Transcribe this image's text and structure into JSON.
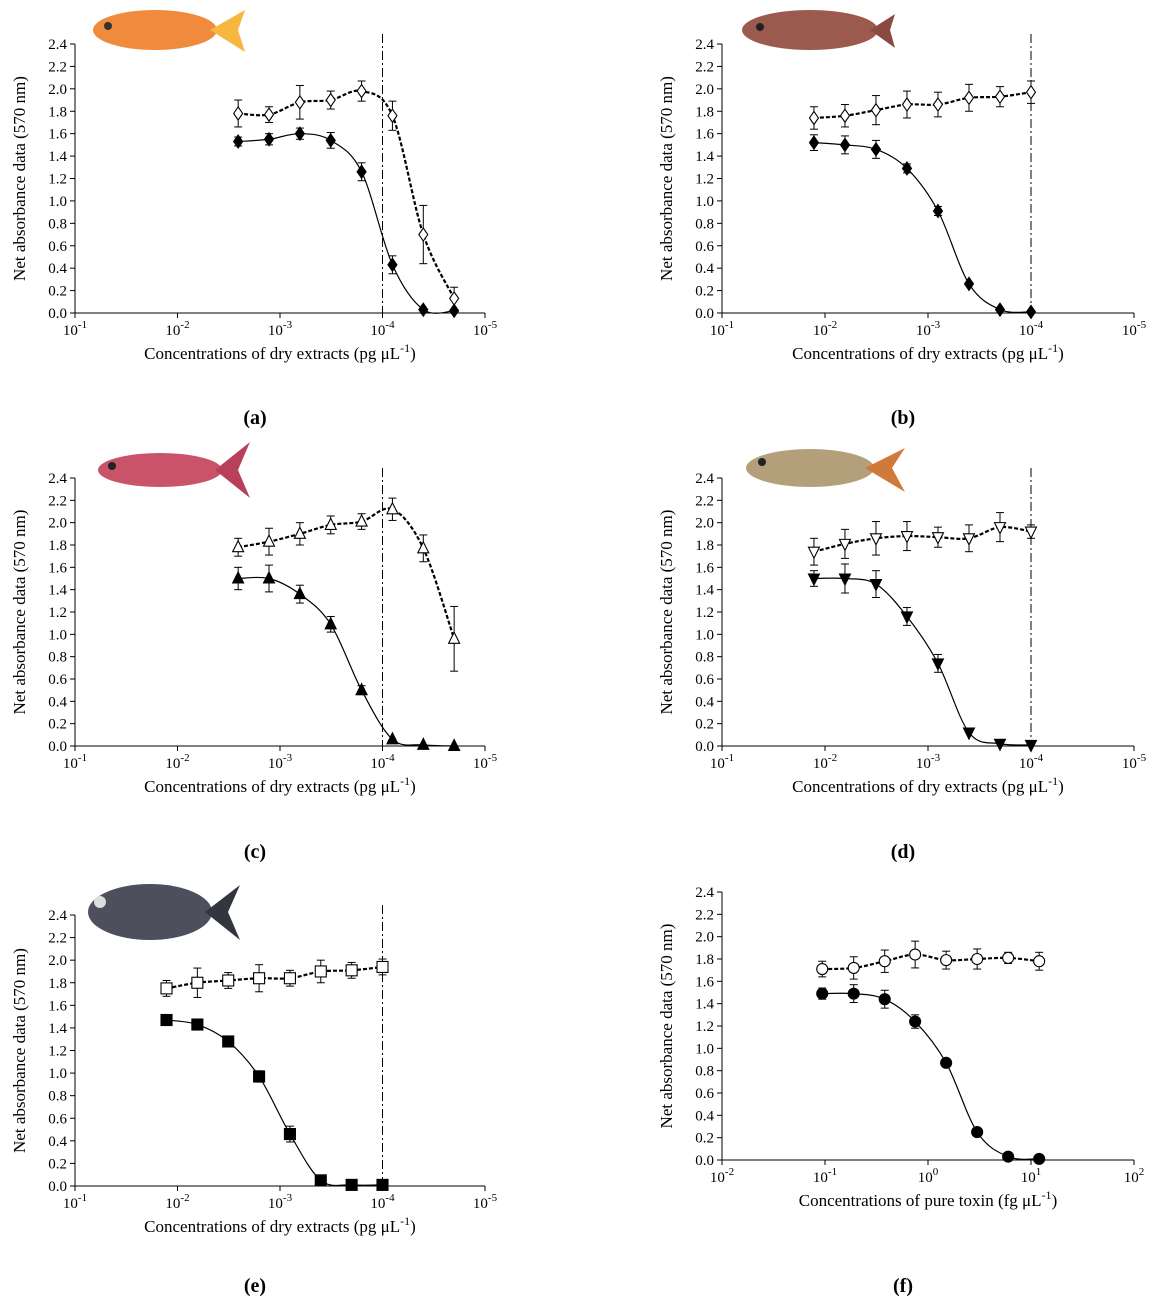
{
  "chart_data": [
    {
      "type": "scatter",
      "panel_label": "(a)",
      "ylabel": "Net absorbance data (570 nm)",
      "xlabel": {
        "text": "Concentrations of dry extracts (pg μL",
        "sup": "-1",
        "end": ")"
      },
      "xscale": "log",
      "xlim": [
        0.1,
        1e-05
      ],
      "xticks": [
        {
          "value": 0.1,
          "label": "10",
          "exponent": "-1"
        },
        {
          "value": 0.01,
          "label": "10",
          "exponent": "-2"
        },
        {
          "value": 0.001,
          "label": "10",
          "exponent": "-3"
        },
        {
          "value": 0.0001,
          "label": "10",
          "exponent": "-4"
        },
        {
          "value": 1e-05,
          "label": "10",
          "exponent": "-5"
        }
      ],
      "ylim": [
        0,
        2.4
      ],
      "yticks": [
        {
          "value": 0,
          "label": "0.0"
        },
        0.2,
        0.4,
        0.6,
        0.8,
        {
          "value": 1,
          "label": "1.0"
        },
        1.2,
        1.4,
        1.6,
        1.8,
        {
          "value": 2,
          "label": "2.0"
        },
        2.2,
        2.4
      ],
      "vline_x": 0.0001,
      "x": [
        0.00256,
        0.00128,
        0.00064,
        0.00032,
        0.00016,
        8e-05,
        4e-05,
        2e-05
      ],
      "series": [
        {
          "marker": "diamond",
          "fill": "#000000",
          "color": "#000000",
          "line": "solid",
          "values": [
            1.53,
            1.55,
            1.6,
            1.54,
            1.26,
            0.43,
            0.03,
            0.02
          ],
          "errors": [
            0.04,
            0.05,
            0.05,
            0.07,
            0.08,
            0.08,
            0,
            0
          ]
        },
        {
          "marker": "diamond",
          "fill": "#ffffff",
          "color": "#000000",
          "line": "dashed",
          "values": [
            1.78,
            1.77,
            1.88,
            1.9,
            1.98,
            1.76,
            0.7,
            0.13
          ],
          "errors": [
            0.12,
            0.07,
            0.15,
            0.08,
            0.09,
            0.13,
            0.26,
            0.1
          ]
        }
      ]
    },
    {
      "type": "scatter",
      "panel_label": "(b)",
      "ylabel": "Net absorbance data (570 nm)",
      "xlabel": {
        "text": "Concentrations of dry extracts (pg μL",
        "sup": "-1",
        "end": ")"
      },
      "xscale": "log",
      "xlim": [
        0.1,
        1e-05
      ],
      "xticks": [
        {
          "value": 0.1,
          "label": "10",
          "exponent": "-1"
        },
        {
          "value": 0.01,
          "label": "10",
          "exponent": "-2"
        },
        {
          "value": 0.001,
          "label": "10",
          "exponent": "-3"
        },
        {
          "value": 0.0001,
          "label": "10",
          "exponent": "-4"
        },
        {
          "value": 1e-05,
          "label": "10",
          "exponent": "-5"
        }
      ],
      "ylim": [
        0,
        2.4
      ],
      "yticks": [
        {
          "value": 0,
          "label": "0.0"
        },
        0.2,
        0.4,
        0.6,
        0.8,
        {
          "value": 1,
          "label": "1.0"
        },
        1.2,
        1.4,
        1.6,
        1.8,
        {
          "value": 2,
          "label": "2.0"
        },
        2.2,
        2.4
      ],
      "vline_x": 0.0001,
      "x": [
        0.0128,
        0.0064,
        0.0032,
        0.0016,
        0.0008,
        0.0004,
        0.0002,
        0.0001
      ],
      "series": [
        {
          "marker": "diamond",
          "fill": "#000000",
          "color": "#000000",
          "line": "solid",
          "values": [
            1.52,
            1.5,
            1.46,
            1.29,
            0.91,
            0.26,
            0.03,
            0.01
          ],
          "errors": [
            0.07,
            0.08,
            0.08,
            0.04,
            0.04,
            0,
            0,
            0
          ]
        },
        {
          "marker": "diamond",
          "fill": "#ffffff",
          "color": "#000000",
          "line": "dashed",
          "values": [
            1.74,
            1.76,
            1.81,
            1.86,
            1.86,
            1.92,
            1.93,
            1.97
          ],
          "errors": [
            0.1,
            0.1,
            0.13,
            0.12,
            0.11,
            0.12,
            0.09,
            0.1
          ]
        }
      ]
    },
    {
      "type": "scatter",
      "panel_label": "(c)",
      "ylabel": "Net absorbance data (570 nm)",
      "xlabel": {
        "text": "Concentrations of dry extracts (pg μL",
        "sup": "-1",
        "end": ")"
      },
      "xscale": "log",
      "xlim": [
        0.1,
        1e-05
      ],
      "xticks": [
        {
          "value": 0.1,
          "label": "10",
          "exponent": "-1"
        },
        {
          "value": 0.01,
          "label": "10",
          "exponent": "-2"
        },
        {
          "value": 0.001,
          "label": "10",
          "exponent": "-3"
        },
        {
          "value": 0.0001,
          "label": "10",
          "exponent": "-4"
        },
        {
          "value": 1e-05,
          "label": "10",
          "exponent": "-5"
        }
      ],
      "ylim": [
        0,
        2.4
      ],
      "yticks": [
        {
          "value": 0,
          "label": "0.0"
        },
        0.2,
        0.4,
        0.6,
        0.8,
        {
          "value": 1,
          "label": "1.0"
        },
        1.2,
        1.4,
        1.6,
        1.8,
        {
          "value": 2,
          "label": "2.0"
        },
        2.2,
        2.4
      ],
      "vline_x": 0.0001,
      "x": [
        0.00256,
        0.00128,
        0.00064,
        0.00032,
        0.00016,
        8e-05,
        4e-05,
        2e-05
      ],
      "series": [
        {
          "marker": "triangle-up",
          "fill": "#000000",
          "color": "#000000",
          "line": "solid",
          "values": [
            1.5,
            1.5,
            1.36,
            1.09,
            0.5,
            0.06,
            0.01,
            0.0
          ],
          "errors": [
            0.1,
            0.12,
            0.08,
            0.07,
            0.04,
            0,
            0,
            0
          ]
        },
        {
          "marker": "triangle-up",
          "fill": "#ffffff",
          "color": "#000000",
          "line": "dashed",
          "values": [
            1.78,
            1.83,
            1.9,
            1.98,
            2.01,
            2.12,
            1.77,
            0.96
          ],
          "errors": [
            0.08,
            0.12,
            0.1,
            0.08,
            0.07,
            0.1,
            0.12,
            0.29
          ]
        }
      ]
    },
    {
      "type": "scatter",
      "panel_label": "(d)",
      "ylabel": "Net absorbance data (570 nm)",
      "xlabel": {
        "text": "Concentrations of dry extracts (pg μL",
        "sup": "-1",
        "end": ")"
      },
      "xscale": "log",
      "xlim": [
        0.1,
        1e-05
      ],
      "xticks": [
        {
          "value": 0.1,
          "label": "10",
          "exponent": "-1"
        },
        {
          "value": 0.01,
          "label": "10",
          "exponent": "-2"
        },
        {
          "value": 0.001,
          "label": "10",
          "exponent": "-3"
        },
        {
          "value": 0.0001,
          "label": "10",
          "exponent": "-4"
        },
        {
          "value": 1e-05,
          "label": "10",
          "exponent": "-5"
        }
      ],
      "ylim": [
        0,
        2.4
      ],
      "yticks": [
        {
          "value": 0,
          "label": "0.0"
        },
        0.2,
        0.4,
        0.6,
        0.8,
        {
          "value": 1,
          "label": "1.0"
        },
        1.2,
        1.4,
        1.6,
        1.8,
        {
          "value": 2,
          "label": "2.0"
        },
        2.2,
        2.4
      ],
      "vline_x": 0.0001,
      "x": [
        0.0128,
        0.0064,
        0.0032,
        0.0016,
        0.0008,
        0.0004,
        0.0002,
        0.0001
      ],
      "series": [
        {
          "marker": "triangle-down",
          "fill": "#000000",
          "color": "#000000",
          "line": "solid",
          "values": [
            1.5,
            1.5,
            1.45,
            1.16,
            0.74,
            0.12,
            0.02,
            0.01
          ],
          "errors": [
            0.07,
            0.13,
            0.12,
            0.08,
            0.08,
            0,
            0,
            0
          ]
        },
        {
          "marker": "triangle-down",
          "fill": "#ffffff",
          "color": "#000000",
          "line": "dashed",
          "values": [
            1.74,
            1.81,
            1.86,
            1.88,
            1.87,
            1.86,
            1.96,
            1.92
          ],
          "errors": [
            0.12,
            0.13,
            0.15,
            0.13,
            0.09,
            0.12,
            0.13,
            0.06
          ]
        }
      ]
    },
    {
      "type": "scatter",
      "panel_label": "(e)",
      "ylabel": "Net absorbance data (570 nm)",
      "xlabel": {
        "text": "Concentrations of dry extracts (pg μL",
        "sup": "-1",
        "end": ")"
      },
      "xscale": "log",
      "xlim": [
        0.1,
        1e-05
      ],
      "xticks": [
        {
          "value": 0.1,
          "label": "10",
          "exponent": "-1"
        },
        {
          "value": 0.01,
          "label": "10",
          "exponent": "-2"
        },
        {
          "value": 0.001,
          "label": "10",
          "exponent": "-3"
        },
        {
          "value": 0.0001,
          "label": "10",
          "exponent": "-4"
        },
        {
          "value": 1e-05,
          "label": "10",
          "exponent": "-5"
        }
      ],
      "ylim": [
        0,
        2.4
      ],
      "yticks": [
        {
          "value": 0,
          "label": "0.0"
        },
        0.2,
        0.4,
        0.6,
        0.8,
        {
          "value": 1,
          "label": "1.0"
        },
        1.2,
        1.4,
        1.6,
        1.8,
        {
          "value": 2,
          "label": "2.0"
        },
        2.2,
        2.4
      ],
      "vline_x": 0.0001,
      "x": [
        0.0128,
        0.0064,
        0.0032,
        0.0016,
        0.0008,
        0.0004,
        0.0002,
        0.0001
      ],
      "series": [
        {
          "marker": "square",
          "fill": "#000000",
          "color": "#000000",
          "line": "solid",
          "values": [
            1.47,
            1.43,
            1.28,
            0.97,
            0.46,
            0.05,
            0.01,
            0.01
          ],
          "errors": [
            0,
            0,
            0,
            0.05,
            0.07,
            0,
            0,
            0
          ]
        },
        {
          "marker": "square",
          "fill": "#ffffff",
          "color": "#000000",
          "line": "dashed",
          "values": [
            1.75,
            1.8,
            1.82,
            1.84,
            1.84,
            1.9,
            1.91,
            1.94
          ],
          "errors": [
            0.07,
            0.13,
            0.07,
            0.12,
            0.07,
            0.1,
            0.07,
            0.07
          ]
        }
      ]
    },
    {
      "type": "scatter",
      "panel_label": "(f)",
      "ylabel": "Net absorbance data (570 nm)",
      "xlabel": {
        "text": "Concentrations of pure toxin (fg μL",
        "sup": "-1",
        "end": ")"
      },
      "xscale": "log",
      "xlim": [
        0.01,
        100
      ],
      "xticks": [
        {
          "value": 0.01,
          "label": "10",
          "exponent": "-2"
        },
        {
          "value": 0.1,
          "label": "10",
          "exponent": "-1"
        },
        {
          "value": 1,
          "label": "10",
          "exponent": "0"
        },
        {
          "value": 10,
          "label": "10",
          "exponent": "1"
        },
        {
          "value": 100,
          "label": "10",
          "exponent": "2"
        }
      ],
      "ylim": [
        0,
        2.4
      ],
      "yticks": [
        {
          "value": 0,
          "label": "0.0"
        },
        0.2,
        0.4,
        0.6,
        0.8,
        {
          "value": 1,
          "label": "1.0"
        },
        1.2,
        1.4,
        1.6,
        1.8,
        {
          "value": 2,
          "label": "2.0"
        },
        2.2,
        2.4
      ],
      "x": [
        0.094,
        0.19,
        0.38,
        0.75,
        1.5,
        3,
        6,
        12
      ],
      "series": [
        {
          "marker": "circle",
          "fill": "#000000",
          "color": "#000000",
          "line": "solid",
          "values": [
            1.49,
            1.49,
            1.44,
            1.24,
            0.87,
            0.25,
            0.03,
            0.01
          ],
          "errors": [
            0.05,
            0.08,
            0.08,
            0.06,
            0,
            0,
            0,
            0
          ]
        },
        {
          "marker": "circle",
          "fill": "#ffffff",
          "color": "#000000",
          "line": "dashed",
          "values": [
            1.71,
            1.72,
            1.78,
            1.84,
            1.79,
            1.8,
            1.81,
            1.78
          ],
          "errors": [
            0.07,
            0.1,
            0.1,
            0.12,
            0.08,
            0.09,
            0.05,
            0.08
          ]
        }
      ]
    }
  ]
}
